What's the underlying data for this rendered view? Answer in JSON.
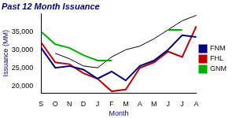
{
  "chart_data": {
    "type": "line",
    "title": "Past 12 Month Issuance",
    "x_label": "Month",
    "y_label": "Issuance (MM)",
    "categories": [
      "S",
      "O",
      "N",
      "D",
      "J",
      "F",
      "M",
      "A",
      "M",
      "J",
      "J",
      "A"
    ],
    "series": [
      {
        "name": "FNM",
        "color": "#000080",
        "values": [
          30500,
          25000,
          25500,
          24500,
          22000,
          24000,
          21500,
          25500,
          27000,
          30000,
          34000,
          33500
        ]
      },
      {
        "name": "FHL",
        "color": "#c00000",
        "values": [
          32000,
          26500,
          26000,
          23500,
          22000,
          18500,
          19000,
          25000,
          26500,
          29500,
          28000,
          36500
        ]
      },
      {
        "name": "GNM",
        "color": "#00b000",
        "values": [
          35000,
          31500,
          30500,
          28500,
          27000,
          27000,
          null,
          null,
          null,
          35500,
          35500,
          null
        ]
      },
      {
        "color": "#000000",
        "values": [
          null,
          29000,
          27500,
          25500,
          25000,
          28000,
          30000,
          31000,
          33000,
          35500,
          38000,
          39500
        ]
      }
    ],
    "ylim": [
      18000,
      40000
    ],
    "yticks": [
      {
        "value": 20000,
        "label": "20,000"
      },
      {
        "value": 25000,
        "label": "25,000"
      },
      {
        "value": 30000,
        "label": "30,000"
      },
      {
        "value": 35000,
        "label": "35,000"
      }
    ],
    "grid": false,
    "legend": "right"
  }
}
